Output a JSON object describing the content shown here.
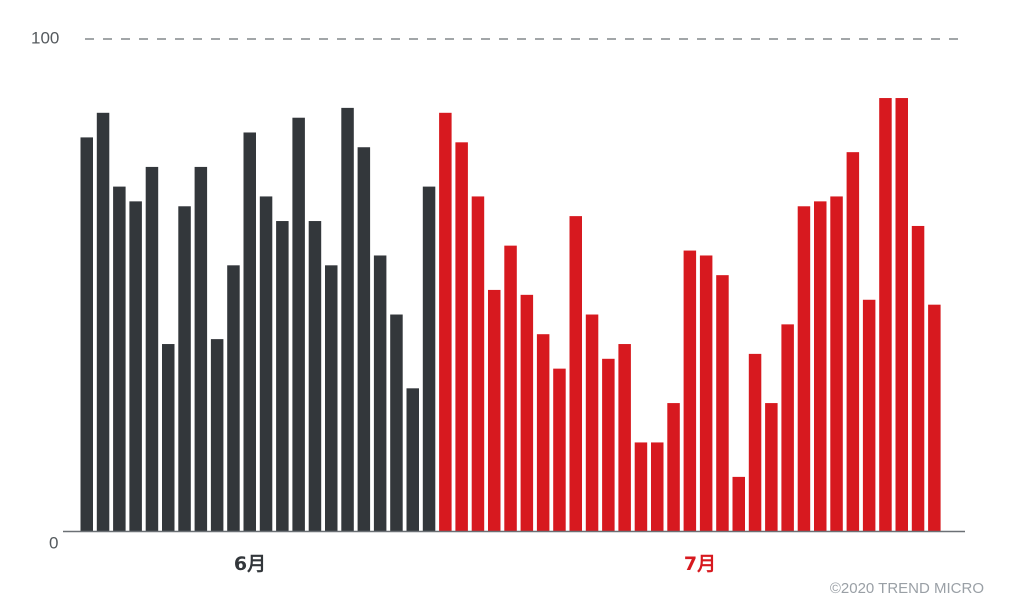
{
  "chart_data": {
    "type": "bar",
    "y_ticks": [
      "0",
      "100"
    ],
    "ylim": [
      0,
      100
    ],
    "grid": "dashed line at 100",
    "groups": [
      {
        "name": "6月",
        "color": "#33373b",
        "values": [
          80,
          85,
          70,
          67,
          74,
          38,
          66,
          74,
          39,
          54,
          81,
          68,
          63,
          84,
          63,
          54,
          86,
          78,
          56,
          44,
          29,
          70
        ]
      },
      {
        "name": "7月",
        "color": "#d7191f",
        "values": [
          85,
          79,
          68,
          49,
          58,
          48,
          40,
          33,
          64,
          44,
          35,
          38,
          18,
          18,
          26,
          57,
          56,
          52,
          11,
          36,
          26,
          42,
          66,
          67,
          68,
          77,
          47,
          88,
          88,
          62,
          46
        ]
      }
    ],
    "credit": "©2020 TREND MICRO"
  }
}
